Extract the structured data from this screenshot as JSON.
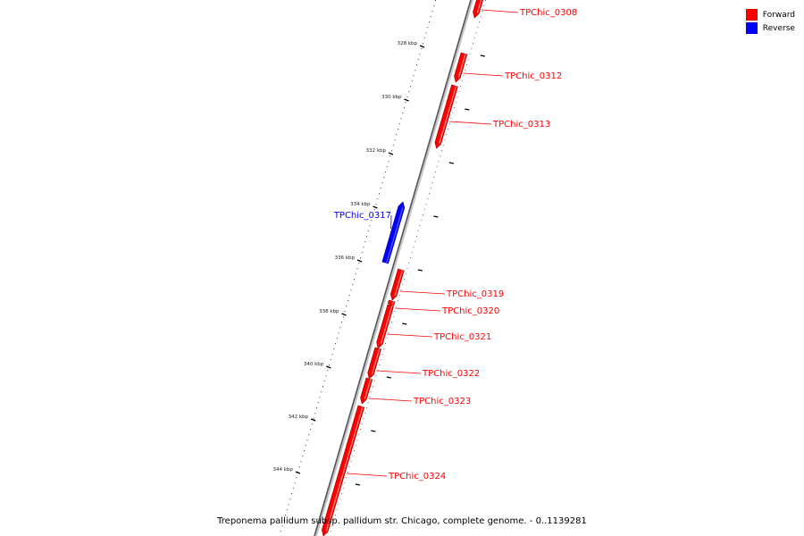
{
  "legend": [
    {
      "label": "Forward",
      "color": "#ff0000"
    },
    {
      "label": "Reverse",
      "color": "#0000ff"
    }
  ],
  "caption": "Treponema pallidum subsp. pallidum str. Chicago, complete genome. - 0..1139281",
  "ruler": {
    "unit": "kbp",
    "labels": [
      "328 kbp",
      "330 kbp",
      "332 kbp",
      "334 kbp",
      "336 kbp",
      "338 kbp",
      "340 kbp",
      "342 kbp",
      "344 kbp"
    ]
  },
  "genes": [
    {
      "name": "TPChic_0308",
      "strand": "forward"
    },
    {
      "name": "TPChic_0312",
      "strand": "forward"
    },
    {
      "name": "TPChic_0313",
      "strand": "forward"
    },
    {
      "name": "TPChic_0317",
      "strand": "reverse"
    },
    {
      "name": "TPChic_0319",
      "strand": "forward"
    },
    {
      "name": "TPChic_0320",
      "strand": "forward"
    },
    {
      "name": "TPChic_0321",
      "strand": "forward"
    },
    {
      "name": "TPChic_0322",
      "strand": "forward"
    },
    {
      "name": "TPChic_0323",
      "strand": "forward"
    },
    {
      "name": "TPChic_0324",
      "strand": "forward"
    }
  ]
}
